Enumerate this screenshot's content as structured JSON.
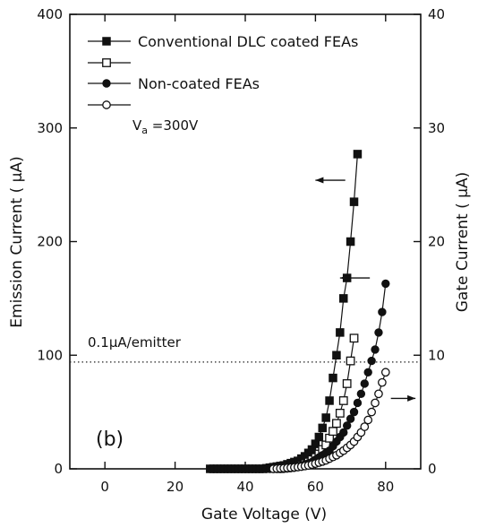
{
  "chart_data": {
    "type": "scatter",
    "xlabel": "Gate Voltage (V)",
    "ylabel_left": "Emission Current ( μA)",
    "ylabel_right": "Gate Current ( μA)",
    "xlim": [
      -10,
      90
    ],
    "ylim_left": [
      0,
      400
    ],
    "ylim_right": [
      0,
      40
    ],
    "xticks": [
      "0",
      "20",
      "40",
      "60",
      "80"
    ],
    "yticks_left": [
      "0",
      "100",
      "200",
      "300",
      "400"
    ],
    "yticks_right": [
      "0",
      "10",
      "20",
      "30",
      "40"
    ],
    "grid": false,
    "legend_position": "top-left",
    "annotations": {
      "condition_main": "V",
      "condition_sub": "a",
      "condition_rest": " =300V",
      "threshold_label": "0.1μA/emitter",
      "threshold_value": 94,
      "panel_label": "(b)"
    },
    "series": [
      {
        "name": "Conventional DLC coated FEAs",
        "marker": "filled-square",
        "axis": "left",
        "x": [
          30,
          31,
          32,
          33,
          34,
          35,
          36,
          37,
          38,
          39,
          40,
          41,
          42,
          43,
          44,
          45,
          46,
          47,
          48,
          49,
          50,
          51,
          52,
          53,
          54,
          55,
          56,
          57,
          58,
          59,
          60,
          61,
          62,
          63,
          64,
          65,
          66,
          67,
          68,
          69,
          70,
          71,
          72
        ],
        "y": [
          0,
          0,
          0,
          0,
          0,
          0,
          0,
          0,
          0,
          0,
          0,
          0,
          0,
          0,
          0,
          0,
          0.5,
          1,
          1.5,
          2,
          2.5,
          3,
          4,
          5,
          6,
          7,
          9,
          11,
          14,
          17,
          22,
          28,
          36,
          45,
          60,
          80,
          100,
          120,
          150,
          168,
          200,
          235,
          277
        ]
      },
      {
        "name": "",
        "marker": "open-square",
        "axis": "right",
        "x": [
          50,
          51,
          52,
          53,
          54,
          55,
          56,
          57,
          58,
          59,
          60,
          61,
          62,
          63,
          64,
          65,
          66,
          67,
          68,
          69,
          70,
          71
        ],
        "y": [
          0.02,
          0.05,
          0.08,
          0.12,
          0.18,
          0.25,
          0.33,
          0.45,
          0.6,
          0.8,
          1.0,
          1.3,
          1.7,
          2.1,
          2.7,
          3.3,
          4.0,
          4.9,
          6.0,
          7.5,
          9.5,
          11.5
        ]
      },
      {
        "name": "Non-coated FEAs",
        "marker": "filled-circle",
        "axis": "left",
        "x": [
          30,
          31,
          32,
          33,
          34,
          35,
          36,
          37,
          38,
          39,
          40,
          41,
          42,
          43,
          44,
          45,
          46,
          47,
          48,
          49,
          50,
          51,
          52,
          53,
          54,
          55,
          56,
          57,
          58,
          59,
          60,
          61,
          62,
          63,
          64,
          65,
          66,
          67,
          68,
          69,
          70,
          71,
          72,
          73,
          74,
          75,
          76,
          77,
          78,
          79,
          80
        ],
        "y": [
          0,
          0,
          0,
          0,
          0,
          0,
          0,
          0,
          0,
          0,
          0,
          0,
          0,
          0,
          0,
          0,
          0,
          0,
          0,
          0,
          0,
          0.5,
          1,
          1.5,
          2,
          2.5,
          3,
          4,
          5,
          6,
          8,
          10,
          12,
          14,
          16,
          20,
          24,
          28,
          32,
          38,
          44,
          50,
          58,
          66,
          75,
          85,
          95,
          105,
          120,
          138,
          163
        ]
      },
      {
        "name": "",
        "marker": "open-circle",
        "axis": "right",
        "x": [
          48,
          49,
          50,
          51,
          52,
          53,
          54,
          55,
          56,
          57,
          58,
          59,
          60,
          61,
          62,
          63,
          64,
          65,
          66,
          67,
          68,
          69,
          70,
          71,
          72,
          73,
          74,
          75,
          76,
          77,
          78,
          79,
          80
        ],
        "y": [
          0,
          0.02,
          0.04,
          0.06,
          0.08,
          0.1,
          0.13,
          0.16,
          0.2,
          0.25,
          0.3,
          0.38,
          0.46,
          0.55,
          0.65,
          0.75,
          0.9,
          1.05,
          1.2,
          1.4,
          1.6,
          1.85,
          2.1,
          2.4,
          2.8,
          3.2,
          3.7,
          4.3,
          5.0,
          5.8,
          6.6,
          7.6,
          8.5
        ]
      }
    ]
  }
}
